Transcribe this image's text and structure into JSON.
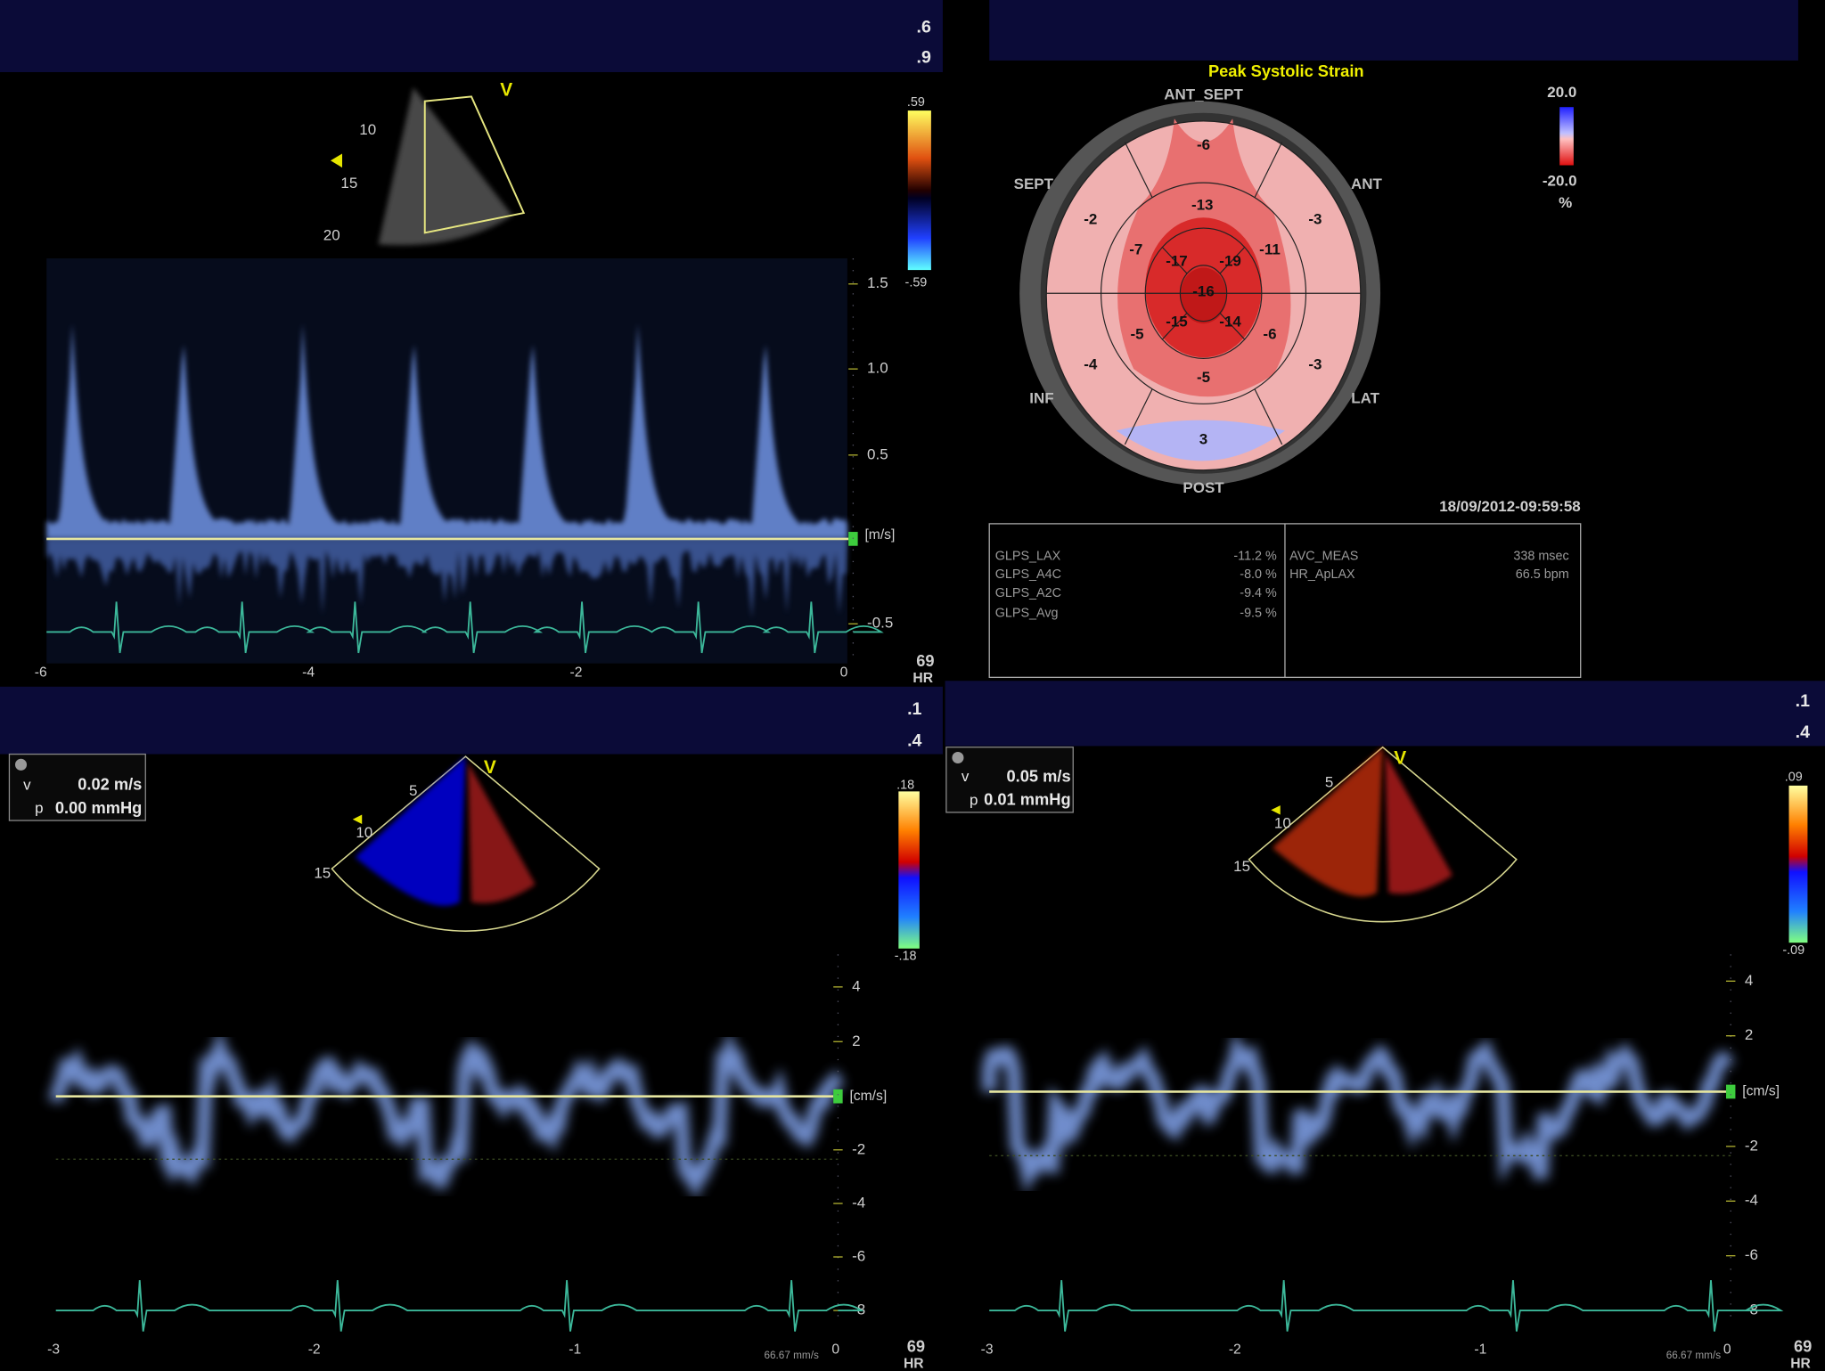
{
  "doppler_panels": [
    {
      "header": [
        ".6",
        ".9"
      ],
      "sector": {
        "marker": "V",
        "depths": [
          "10",
          "15",
          "20"
        ]
      },
      "colorbar": [
        ".59",
        "-.59"
      ],
      "yaxis": {
        "ticks": [
          "1.5",
          "1.0",
          "0.5",
          "-0.5"
        ],
        "unit": "[m/s]"
      },
      "xaxis": [
        "-6",
        "-4",
        "-2",
        "0"
      ],
      "hr": {
        "value": "69",
        "label": "HR"
      }
    },
    {
      "header": [
        ".1",
        ".4"
      ],
      "readout": {
        "v": [
          "v",
          "0.02 m/s"
        ],
        "p": [
          "p",
          "0.00 mmHg"
        ]
      },
      "sector": {
        "marker": "V",
        "depths": [
          "5",
          "10",
          "15"
        ]
      },
      "colorbar": [
        ".18",
        "-.18"
      ],
      "yaxis": {
        "ticks": [
          "4",
          "2",
          "-2",
          "-4",
          "-6",
          "-8"
        ],
        "unit": "[cm/s]"
      },
      "xaxis": [
        "-3",
        "-2",
        "-1",
        "0"
      ],
      "speed": "66.67 mm/s",
      "hr": {
        "value": "69",
        "label": "HR"
      }
    },
    {
      "header": [
        ".1",
        ".4"
      ],
      "readout": {
        "v": [
          "v",
          "0.05 m/s"
        ],
        "p": [
          "p",
          "0.01 mmHg"
        ]
      },
      "sector": {
        "marker": "V",
        "depths": [
          "5",
          "10",
          "15"
        ]
      },
      "colorbar": [
        ".09",
        "-.09"
      ],
      "yaxis": {
        "ticks": [
          "4",
          "2",
          "-2",
          "-4",
          "-6",
          "-8"
        ],
        "unit": "[cm/s]"
      },
      "xaxis": [
        "-3",
        "-2",
        "-1",
        "0"
      ],
      "speed": "66.67 mm/s",
      "hr": {
        "value": "69",
        "label": "HR"
      }
    }
  ],
  "bullseye": {
    "title": "Peak Systolic Strain",
    "regions": [
      "ANT_SEPT",
      "SEPT",
      "ANT",
      "INF",
      "LAT",
      "POST"
    ],
    "segments": [
      "-6",
      "-2",
      "-13",
      "-3",
      "-7",
      "-17",
      "-19",
      "-11",
      "-16",
      "-5",
      "-15",
      "-14",
      "-6",
      "-4",
      "-5",
      "-3",
      "3"
    ],
    "colorbar": [
      "20.0",
      "-20.0",
      "%"
    ],
    "date": "18/09/2012-09:59:58"
  },
  "table": {
    "left": [
      [
        "GLPS_LAX",
        "-11.2 %"
      ],
      [
        "GLPS_A4C",
        "-8.0 %"
      ],
      [
        "GLPS_A2C",
        "-9.4 %"
      ],
      [
        "GLPS_Avg",
        "-9.5 %"
      ]
    ],
    "right": [
      [
        "AVC_MEAS",
        "338 msec"
      ],
      [
        "HR_ApLAX",
        "66.5 bpm"
      ]
    ]
  }
}
